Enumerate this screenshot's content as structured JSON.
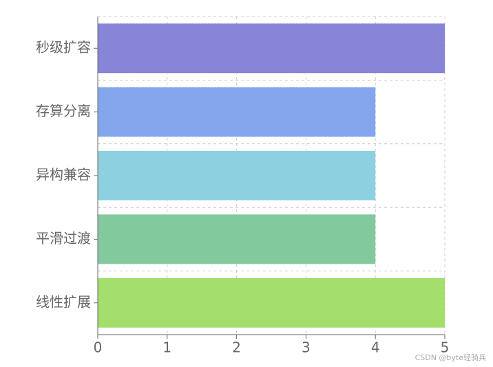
{
  "chart_data": {
    "type": "bar",
    "orientation": "horizontal",
    "categories": [
      "秒级扩容",
      "存算分离",
      "异构兼容",
      "平滑过渡",
      "线性扩展"
    ],
    "values": [
      5,
      4,
      4,
      4,
      5
    ],
    "colors": [
      "#8884d8",
      "#83a6ed",
      "#8dd1e1",
      "#82ca9d",
      "#a4de6c"
    ],
    "xlim": [
      0,
      5
    ],
    "xticks": [
      0,
      1,
      2,
      3,
      4,
      5
    ],
    "grid": true,
    "watermark": "CSDN @byte轻骑兵"
  }
}
